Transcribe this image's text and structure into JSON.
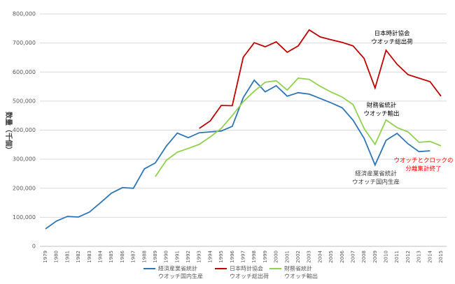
{
  "chart_data": {
    "type": "line",
    "y_label": "数量（千個）",
    "categories": [
      "1979",
      "1980",
      "1981",
      "1982",
      "1983",
      "1984",
      "1985",
      "1986",
      "1987",
      "1988",
      "1989",
      "1990",
      "1991",
      "1992",
      "1993",
      "1994",
      "1995",
      "1996",
      "1997",
      "1998",
      "1999",
      "2000",
      "2001",
      "2002",
      "2003",
      "2004",
      "2005",
      "2006",
      "2007",
      "2008",
      "2009",
      "2010",
      "2011",
      "2012",
      "2013",
      "2014",
      "2015"
    ],
    "series": [
      {
        "name": [
          "経済産業省統計",
          "ウオッチ国内生産"
        ],
        "color": "#2e75b6",
        "values": [
          60000,
          87000,
          103000,
          101000,
          118000,
          150000,
          183000,
          202000,
          200000,
          267000,
          287000,
          345000,
          390000,
          374000,
          391000,
          394000,
          397000,
          413000,
          512000,
          572000,
          532000,
          553000,
          517000,
          529000,
          524000,
          509000,
          494000,
          477000,
          434000,
          372000,
          280000,
          365000,
          389000,
          353000,
          326000,
          329000,
          null
        ]
      },
      {
        "name": [
          "日本時計協会",
          "ウオッチ総出荷"
        ],
        "color": "#c00000",
        "values": [
          null,
          null,
          null,
          null,
          null,
          null,
          null,
          null,
          null,
          null,
          null,
          null,
          null,
          null,
          406000,
          432000,
          485000,
          484000,
          651000,
          701000,
          687000,
          704000,
          668000,
          690000,
          745000,
          721000,
          711000,
          702000,
          690000,
          647000,
          545000,
          675000,
          627000,
          591000,
          579000,
          567000,
          517000
        ]
      },
      {
        "name": [
          "財務省統計",
          "ウオッチ輸出"
        ],
        "color": "#92d050",
        "values": [
          null,
          null,
          null,
          null,
          null,
          null,
          null,
          null,
          null,
          null,
          240000,
          296000,
          324000,
          337000,
          351000,
          377000,
          406000,
          450000,
          498000,
          534000,
          565000,
          570000,
          538000,
          579000,
          575000,
          551000,
          531000,
          514000,
          488000,
          406000,
          351000,
          435000,
          409000,
          394000,
          358000,
          361000,
          346000
        ]
      }
    ],
    "ylim": [
      0,
      800000
    ],
    "yticks": [
      0,
      {
        "value": 100000,
        "label": "100,000"
      },
      {
        "value": 200000,
        "label": "200,000"
      },
      {
        "value": 300000,
        "label": "300,000"
      },
      {
        "value": 400000,
        "label": "400,000"
      },
      {
        "value": 500000,
        "label": "500,000"
      },
      {
        "value": 600000,
        "label": "600,000"
      },
      {
        "value": 700000,
        "label": "700,000"
      },
      {
        "value": 800000,
        "label": "800,000"
      }
    ],
    "grid": true,
    "annotations": [
      {
        "lines": [
          "日本時計協会",
          "ウオッチ総出荷"
        ],
        "color": "#000000"
      },
      {
        "lines": [
          "財務省統計",
          "ウオッチ輸出"
        ],
        "color": "#000000"
      },
      {
        "lines": [
          "ウオッチとクロックの",
          "分離集計終了"
        ],
        "color": "#ff0000"
      },
      {
        "lines": [
          "経済産業省統計",
          "ウオッチ国内生産"
        ],
        "color": "#404040"
      }
    ]
  }
}
